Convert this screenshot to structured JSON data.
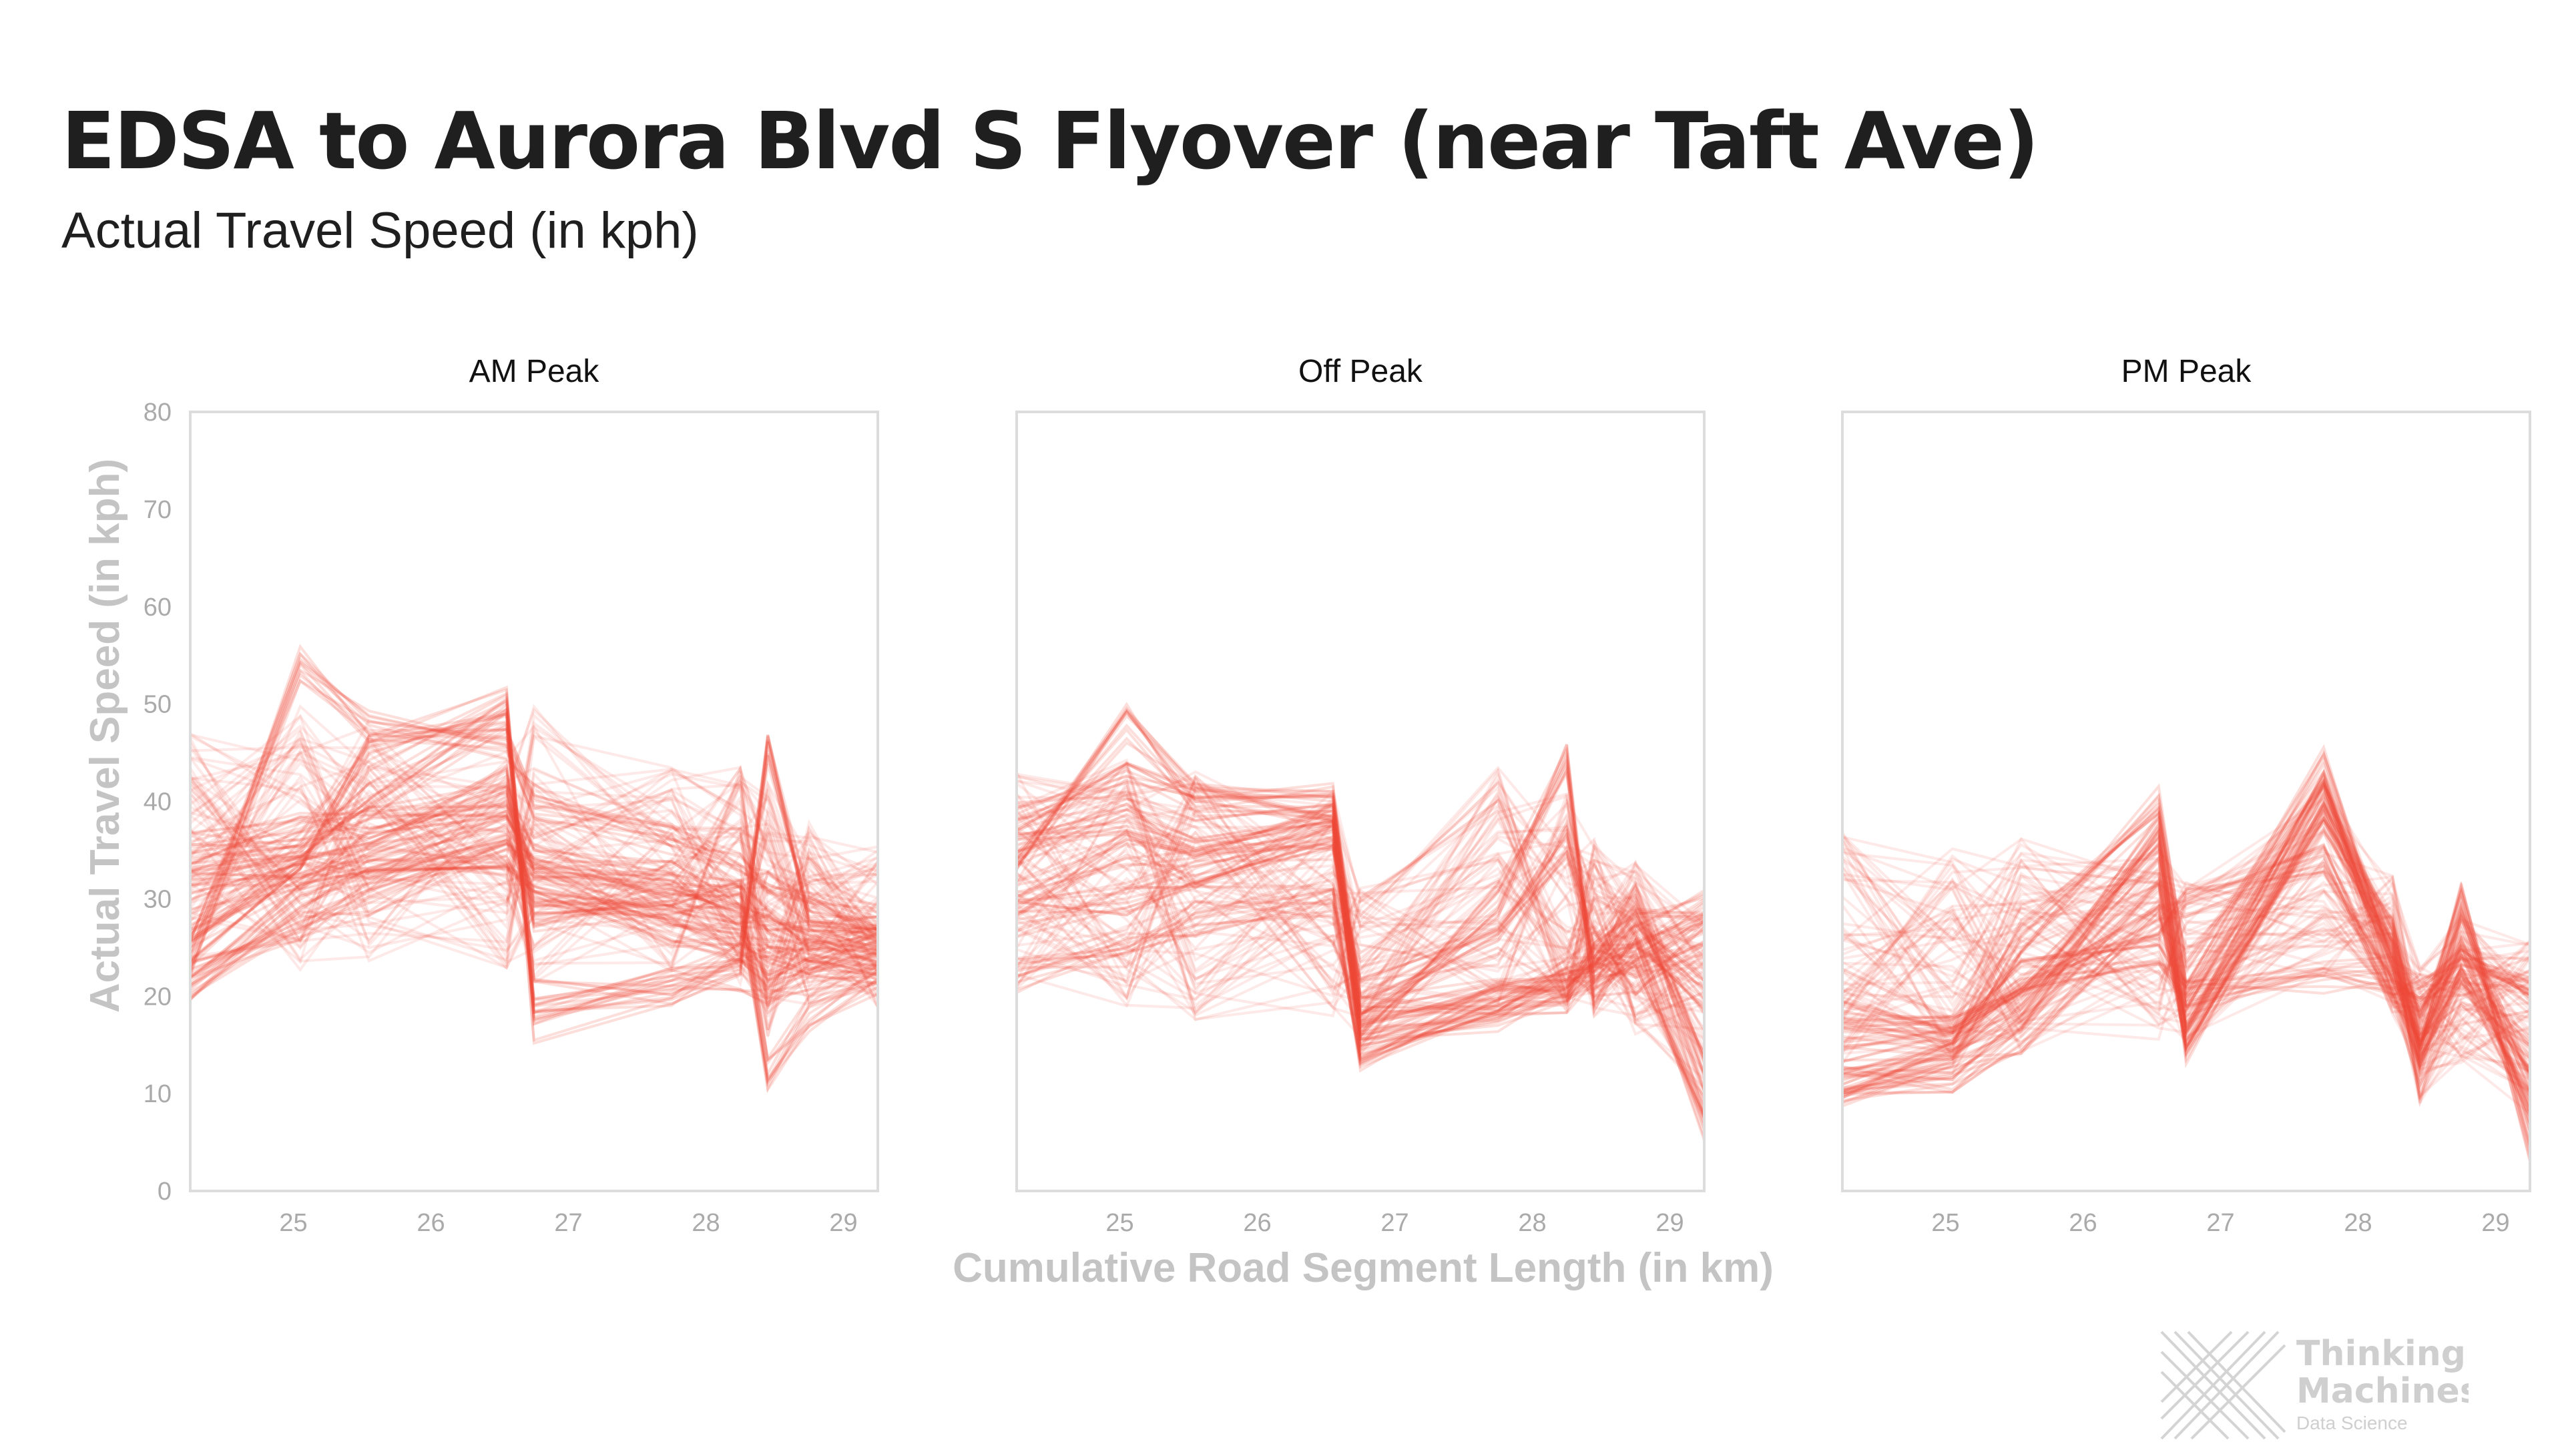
{
  "title": "EDSA to Aurora Blvd S Flyover (near Taft Ave)",
  "subtitle": "Actual Travel Speed (in kph)",
  "logo": {
    "line1": "Thinking",
    "line2": "Machines",
    "line3": "Data Science"
  },
  "chart_data": {
    "type": "line",
    "title": "EDSA to Aurora Blvd S Flyover (near Taft Ave)",
    "xlabel": "Cumulative Road Segment Length (in km)",
    "ylabel": "Actual Travel Speed (in kph)",
    "xlim": [
      24.25,
      29.25
    ],
    "ylim": [
      0,
      80
    ],
    "x_ticks": [
      25,
      26,
      27,
      28,
      29
    ],
    "y_ticks": [
      0,
      10,
      20,
      30,
      40,
      50,
      60,
      70,
      80
    ],
    "grid": false,
    "line_color": "#ee4a3a",
    "line_opacity": 0.12,
    "x": [
      24.25,
      25.05,
      25.55,
      26.55,
      26.75,
      27.75,
      28.25,
      28.45,
      28.75,
      29.25
    ],
    "panels": [
      {
        "name": "AM Peak",
        "profile_ranges": [
          [
            16,
            53
          ],
          [
            16,
            56
          ],
          [
            18,
            54
          ],
          [
            18,
            50
          ],
          [
            15,
            56
          ],
          [
            18,
            48
          ],
          [
            16,
            49
          ],
          [
            10,
            48
          ],
          [
            15,
            42
          ],
          [
            15,
            39
          ]
        ],
        "series": [
          {
            "values": [
              22,
              27,
              30,
              37,
              34,
              31,
              29,
              28,
              27,
              26
            ]
          },
          {
            "values": [
              31,
              33,
              34,
              38,
              32,
              27,
              25,
              24,
              24,
              23
            ]
          },
          {
            "values": [
              24,
              54,
              48,
              46,
              40,
              36,
              33,
              31,
              29,
              28
            ]
          },
          {
            "values": [
              33,
              36,
              40,
              49,
              20,
              21,
              22,
              20,
              22,
              23
            ]
          },
          {
            "values": [
              25,
              35,
              45,
              50,
              17,
              21,
              24,
              45,
              29,
              27
            ]
          },
          {
            "values": [
              20,
              30,
              32,
              35,
              30,
              28,
              26,
              22,
              24,
              26
            ]
          },
          {
            "values": [
              27,
              33,
              36,
              42,
              28,
              30,
              30,
              12,
              18,
              22
            ]
          },
          {
            "values": [
              35,
              37,
              38,
              40,
              34,
              32,
              30,
              27,
              25,
              25
            ]
          }
        ]
      },
      {
        "name": "Off Peak",
        "profile_ranges": [
          [
            16,
            48
          ],
          [
            13,
            51
          ],
          [
            12,
            49
          ],
          [
            13,
            46
          ],
          [
            12,
            35
          ],
          [
            13,
            49
          ],
          [
            13,
            46
          ],
          [
            14,
            40
          ],
          [
            12,
            38
          ],
          [
            3,
            32
          ]
        ],
        "series": [
          {
            "values": [
              33,
              48,
              40,
              39,
              17,
              19,
              21,
              24,
              27,
              29
            ]
          },
          {
            "values": [
              30,
              35,
              33,
              38,
              15,
              18,
              20,
              23,
              26,
              20
            ]
          },
          {
            "values": [
              28,
              30,
              32,
              36,
              16,
              30,
              44,
              20,
              25,
              7
            ]
          },
          {
            "values": [
              38,
              42,
              40,
              40,
              18,
              20,
              21,
              22,
              24,
              28
            ]
          },
          {
            "values": [
              22,
              25,
              28,
              30,
              14,
              20,
              22,
              25,
              30,
              12
            ]
          },
          {
            "values": [
              35,
              38,
              36,
              37,
              20,
              25,
              36,
              25,
              22,
              26
            ]
          }
        ]
      },
      {
        "name": "PM Peak",
        "profile_ranges": [
          [
            8,
            42
          ],
          [
            8,
            40
          ],
          [
            9,
            41
          ],
          [
            10,
            40
          ],
          [
            10,
            36
          ],
          [
            17,
            47
          ],
          [
            15,
            36
          ],
          [
            6,
            26
          ],
          [
            9,
            33
          ],
          [
            3,
            30
          ]
        ],
        "series": [
          {
            "values": [
              12,
              13,
              18,
              38,
              18,
              43,
              22,
              14,
              24,
              8
            ]
          },
          {
            "values": [
              14,
              15,
              20,
              35,
              15,
              40,
              25,
              15,
              21,
              14
            ]
          },
          {
            "values": [
              11,
              12,
              16,
              30,
              16,
              38,
              26,
              16,
              30,
              5
            ]
          },
          {
            "values": [
              16,
              17,
              22,
              25,
              20,
              22,
              22,
              20,
              22,
              22
            ]
          },
          {
            "values": [
              10,
              14,
              26,
              40,
              22,
              44,
              24,
              13,
              27,
              12
            ]
          },
          {
            "values": [
              18,
              16,
              22,
              28,
              30,
              34,
              20,
              19,
              25,
              20
            ]
          }
        ]
      }
    ]
  }
}
